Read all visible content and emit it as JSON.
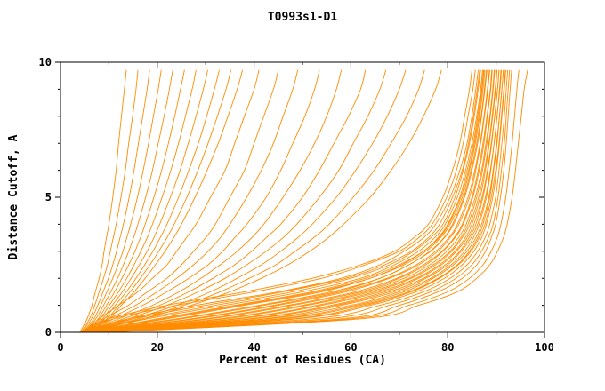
{
  "chart_data": {
    "type": "line",
    "title": "T0993s1-D1",
    "xlabel": "Percent of Residues (CA)",
    "ylabel": "Distance Cutoff, A",
    "xlim": [
      0,
      100
    ],
    "ylim": [
      0,
      10
    ],
    "x_major_ticks": [
      0,
      20,
      40,
      60,
      80,
      100
    ],
    "x_minor_ticks": [
      10,
      30,
      50,
      70,
      90
    ],
    "y_major_ticks": [
      0,
      5,
      10
    ],
    "y_minor_ticks": [
      1,
      2,
      3,
      4,
      6,
      7,
      8,
      9
    ],
    "grid": false,
    "legend_position": "none",
    "line_color": "#FF8C00",
    "axis_color": "#000000",
    "background": "#FFFFFF",
    "y_anchors": [
      0,
      0.5,
      1,
      1.5,
      2,
      2.5,
      3,
      3.5,
      4,
      5,
      6,
      7,
      8,
      9,
      9.7
    ],
    "series": [
      [
        4,
        10,
        22,
        38,
        52,
        62,
        69,
        73,
        76,
        79,
        81,
        82.5,
        83.5,
        84.5,
        85
      ],
      [
        4.3,
        14,
        28,
        45,
        58,
        66,
        71,
        75,
        77.5,
        80.5,
        82.5,
        84,
        85,
        85.8,
        86.3
      ],
      [
        4.6,
        17,
        32,
        48,
        60,
        68,
        73,
        76.5,
        79,
        81.5,
        83.2,
        84.5,
        85.5,
        86.3,
        86.8
      ],
      [
        5,
        20,
        36,
        52,
        63,
        70,
        75,
        78,
        80,
        82.5,
        84,
        85.3,
        86.2,
        87,
        87.4
      ],
      [
        4.1,
        11,
        24,
        40,
        54,
        63,
        70,
        74,
        76.8,
        79.8,
        81.8,
        83.2,
        84.2,
        85.2,
        85.7
      ],
      [
        4.8,
        22,
        38,
        54,
        64,
        71,
        75.5,
        78.5,
        80.5,
        83,
        84.5,
        85.7,
        86.6,
        87.3,
        87.7
      ],
      [
        5.2,
        25,
        42,
        57,
        66,
        72,
        76.5,
        79.3,
        81.2,
        83.5,
        85,
        86.2,
        87,
        87.7,
        88.1
      ],
      [
        4.2,
        15,
        30,
        46,
        59,
        67,
        72.5,
        76,
        78.3,
        81,
        83,
        84.3,
        85.3,
        86.1,
        86.6
      ],
      [
        5.5,
        28,
        45,
        59,
        68,
        74,
        78,
        80.5,
        82.3,
        84.5,
        85.8,
        86.8,
        87.6,
        88.3,
        88.7
      ],
      [
        4.5,
        18,
        34,
        50,
        62,
        69,
        74,
        77.3,
        79.5,
        82,
        83.7,
        85,
        86,
        86.8,
        87.2
      ],
      [
        5.8,
        31,
        48,
        62,
        70,
        75.5,
        79,
        81.5,
        83.2,
        85.2,
        86.5,
        87.5,
        88.2,
        88.9,
        89.2
      ],
      [
        4.7,
        21,
        37,
        53,
        64,
        70.5,
        75,
        78.2,
        80.2,
        82.7,
        84.3,
        85.5,
        86.4,
        87.1,
        87.5
      ],
      [
        6,
        34,
        51,
        64,
        72,
        77,
        80.5,
        82.7,
        84.2,
        86,
        87.2,
        88.1,
        88.8,
        89.4,
        89.7
      ],
      [
        4.9,
        24,
        41,
        56,
        66,
        72,
        76.3,
        79.2,
        81,
        83.3,
        84.8,
        86,
        86.9,
        87.6,
        88
      ],
      [
        6.2,
        37,
        54,
        66,
        73.5,
        78.3,
        81.5,
        83.6,
        85,
        86.7,
        87.8,
        88.6,
        89.3,
        89.9,
        90.2
      ],
      [
        5.1,
        27,
        44,
        58,
        67.5,
        73.5,
        77.5,
        80.2,
        82,
        84.2,
        85.6,
        86.7,
        87.5,
        88.2,
        88.6
      ],
      [
        6.5,
        40,
        57,
        68,
        75,
        79.5,
        82.5,
        84.4,
        85.8,
        87.3,
        88.3,
        89.1,
        89.7,
        90.3,
        90.6
      ],
      [
        5.3,
        30,
        47,
        61,
        69.5,
        75,
        78.8,
        81.3,
        83,
        85,
        86.3,
        87.3,
        88.1,
        88.8,
        89.1
      ],
      [
        6.8,
        43,
        60,
        70,
        76.5,
        80.7,
        83.5,
        85.3,
        86.5,
        88,
        88.9,
        89.6,
        90.2,
        90.7,
        91
      ],
      [
        5.6,
        33,
        50,
        63,
        71,
        76.3,
        79.8,
        82.2,
        83.8,
        85.7,
        87,
        87.9,
        88.7,
        89.3,
        89.6
      ],
      [
        7,
        46,
        62,
        72,
        78,
        82,
        84.5,
        86.2,
        87.3,
        88.7,
        89.5,
        90.2,
        90.7,
        91.2,
        91.5
      ],
      [
        5.9,
        36,
        53,
        65,
        72.5,
        77.5,
        80.8,
        83,
        84.6,
        86.4,
        87.6,
        88.5,
        89.2,
        89.8,
        90.1
      ],
      [
        7.3,
        49,
        64,
        73.5,
        79.3,
        83,
        85.4,
        87,
        88,
        89.3,
        90.1,
        90.7,
        91.2,
        91.7,
        92
      ],
      [
        6.1,
        39,
        56,
        67,
        74,
        78.7,
        81.8,
        84,
        85.4,
        87.1,
        88.2,
        89,
        89.7,
        90.3,
        90.6
      ],
      [
        7.6,
        52,
        66,
        75,
        80.5,
        84,
        86.2,
        87.7,
        88.7,
        89.9,
        90.6,
        91.2,
        91.7,
        92.1,
        92.4
      ],
      [
        6.4,
        42,
        58,
        69,
        75.5,
        80,
        82.8,
        84.8,
        86.2,
        87.8,
        88.8,
        89.6,
        90.2,
        90.8,
        91.1
      ],
      [
        8,
        55,
        68,
        76.5,
        81.7,
        85,
        87,
        88.4,
        89.4,
        90.4,
        91.1,
        91.7,
        92.1,
        92.5,
        92.8
      ],
      [
        6.7,
        45,
        61,
        71,
        77,
        81.2,
        84,
        85.8,
        87,
        88.5,
        89.4,
        90.1,
        90.7,
        91.2,
        91.5
      ],
      [
        8.4,
        58,
        70,
        78,
        83,
        86,
        87.8,
        89,
        89.9,
        90.9,
        91.6,
        92.1,
        92.5,
        92.9,
        93.2
      ],
      [
        7,
        48,
        63,
        72.5,
        78.3,
        82.2,
        84.8,
        86.5,
        87.7,
        89,
        89.9,
        90.6,
        91.1,
        91.6,
        91.9
      ],
      [
        9,
        60,
        72,
        80,
        84.5,
        87.3,
        89,
        90.2,
        91,
        92,
        92.7,
        93.3,
        93.8,
        94.3,
        94.7
      ],
      [
        10,
        62,
        74,
        82,
        86,
        88.7,
        90.3,
        91.5,
        92.3,
        93.3,
        94,
        94.6,
        95.2,
        95.8,
        96.5
      ],
      [
        4.5,
        8,
        12,
        16,
        19,
        22,
        24,
        26,
        28,
        31,
        34,
        36,
        38,
        40,
        41
      ],
      [
        4.6,
        9,
        14,
        18,
        22,
        25,
        27.5,
        30,
        32,
        35,
        38,
        40,
        42,
        44,
        45
      ],
      [
        4.7,
        10,
        15.5,
        20,
        24,
        27.5,
        30.5,
        33,
        35,
        38.5,
        41.5,
        44,
        46,
        48,
        49
      ],
      [
        4.8,
        11,
        17,
        22,
        26.5,
        30.5,
        33.5,
        36,
        38.5,
        42.5,
        45.5,
        48,
        50.5,
        52.5,
        53.5
      ],
      [
        5,
        12,
        19,
        24.5,
        29,
        33,
        36.5,
        39.5,
        42,
        46,
        49.5,
        52.5,
        55,
        57,
        58
      ],
      [
        5.1,
        13,
        20.5,
        26.5,
        31.5,
        36,
        39.5,
        42.5,
        45.5,
        50,
        53.5,
        56.5,
        59.5,
        62,
        63
      ],
      [
        5.3,
        14,
        22,
        28.5,
        34,
        38.5,
        42.5,
        46,
        48.8,
        53.5,
        57.5,
        60.5,
        63.5,
        66,
        67.2
      ],
      [
        5.4,
        15,
        24,
        31,
        36.5,
        41.5,
        45.5,
        49,
        52,
        57,
        61,
        64.5,
        67.5,
        70,
        71.3
      ],
      [
        5.6,
        16,
        25.5,
        33,
        39,
        44.5,
        48.5,
        52.3,
        55.5,
        60.5,
        64.8,
        68.3,
        71.5,
        74,
        75.2
      ],
      [
        5.8,
        17,
        27,
        35,
        41.5,
        47,
        51.5,
        55.3,
        58.5,
        64,
        68.3,
        72,
        75,
        77.5,
        78.7
      ],
      [
        4,
        5.5,
        6.5,
        7.2,
        8,
        8.6,
        9,
        9.5,
        10,
        10.8,
        11.5,
        12,
        12.6,
        13.2,
        13.6
      ],
      [
        4.2,
        6,
        7.1,
        8,
        8.9,
        9.7,
        10.3,
        10.9,
        11.5,
        12.5,
        13.4,
        14.1,
        14.9,
        15.6,
        16
      ],
      [
        4.4,
        6.4,
        7.7,
        8.8,
        9.9,
        10.8,
        11.6,
        12.3,
        13,
        14.2,
        15.2,
        16.1,
        17,
        17.9,
        18.4
      ],
      [
        4.6,
        6.9,
        8.3,
        9.6,
        10.8,
        11.9,
        12.9,
        13.7,
        14.5,
        15.9,
        17.1,
        18.2,
        19.2,
        20.2,
        20.8
      ],
      [
        4.8,
        7.3,
        8.9,
        10.4,
        11.8,
        13,
        14.1,
        15.1,
        16,
        17.6,
        19,
        20.2,
        21.4,
        22.5,
        23.2
      ],
      [
        5,
        7.8,
        9.5,
        11.2,
        12.7,
        14.1,
        15.4,
        16.5,
        17.5,
        19.3,
        20.9,
        22.3,
        23.6,
        24.8,
        25.6
      ],
      [
        5.2,
        8.2,
        10.1,
        12,
        13.7,
        15.2,
        16.6,
        17.9,
        19,
        21,
        22.8,
        24.4,
        25.8,
        27.2,
        28
      ],
      [
        5.4,
        8.7,
        10.7,
        12.8,
        14.6,
        16.3,
        17.9,
        19.3,
        20.5,
        22.7,
        24.7,
        26.4,
        28,
        29.5,
        30.4
      ],
      [
        5.6,
        9.1,
        11.3,
        13.6,
        15.6,
        17.4,
        19.1,
        20.6,
        22,
        24.4,
        26.5,
        28.5,
        30.2,
        31.8,
        32.8
      ],
      [
        5.8,
        9.6,
        12,
        14.4,
        16.5,
        18.5,
        20.3,
        22,
        23.5,
        26.1,
        28.4,
        30.5,
        32.4,
        34.2,
        35.2
      ],
      [
        6,
        10,
        12.6,
        15.2,
        17.5,
        19.6,
        21.6,
        23.4,
        25,
        27.8,
        30.3,
        32.6,
        34.6,
        36.5,
        37.6
      ]
    ]
  }
}
